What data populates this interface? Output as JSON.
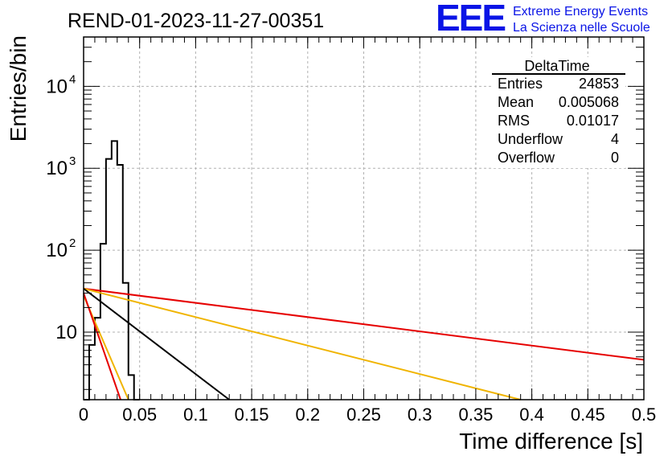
{
  "chart_data": {
    "type": "histogram",
    "title": "REND-01-2023-11-27-00351",
    "xlabel": "Time difference [s]",
    "ylabel": "Entries/bin",
    "xlim": [
      0,
      0.5
    ],
    "ylim": [
      1.5,
      40000
    ],
    "yscale": "log",
    "grid": true,
    "x_tick_labels": [
      "0",
      "0.05",
      "0.1",
      "0.15",
      "0.2",
      "0.25",
      "0.3",
      "0.35",
      "0.4",
      "0.45",
      "0.5"
    ],
    "y_tick_labels": [
      {
        "base": "10",
        "exp": ""
      },
      {
        "base": "10",
        "exp": "2"
      },
      {
        "base": "10",
        "exp": "3"
      },
      {
        "base": "10",
        "exp": "4"
      }
    ],
    "histogram": {
      "name": "DeltaTime",
      "color": "#000000",
      "bin_edges": [
        0,
        0.005,
        0.01,
        0.015,
        0.02,
        0.025,
        0.03,
        0.035,
        0.04,
        0.045,
        0.05
      ],
      "counts": [
        1.5,
        7,
        15,
        120,
        1300,
        2150,
        1100,
        40,
        3,
        1.5
      ]
    },
    "lines": [
      {
        "color": "#e60000",
        "x": [
          0,
          0.5
        ],
        "y": [
          34,
          4.6
        ]
      },
      {
        "color": "#f0b400",
        "x": [
          0,
          0.39
        ],
        "y": [
          34,
          1.5
        ]
      },
      {
        "color": "#000000",
        "x": [
          0,
          0.13
        ],
        "y": [
          34,
          1.5
        ]
      },
      {
        "color": "#f0b400",
        "x": [
          0,
          0.04
        ],
        "y": [
          28,
          1.5
        ]
      },
      {
        "color": "#e60000",
        "x": [
          0,
          0.033
        ],
        "y": [
          30,
          1.5
        ]
      }
    ],
    "stats_box": {
      "title": "DeltaTime",
      "rows": [
        {
          "label": "Entries",
          "value": "24853"
        },
        {
          "label": "Mean",
          "value": "0.005068"
        },
        {
          "label": "RMS",
          "value": "0.01017"
        },
        {
          "label": "Underflow",
          "value": "4"
        },
        {
          "label": "Overflow",
          "value": "0"
        }
      ]
    }
  },
  "logo": {
    "text": "EEE",
    "line1": "Extreme Energy Events",
    "line2": "La Scienza nelle Scuole",
    "color": "#0a14e6"
  }
}
